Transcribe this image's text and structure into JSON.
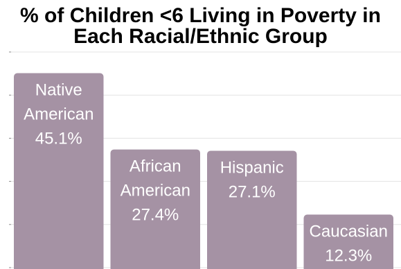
{
  "title_lines": [
    "% of Children <6 Living in Poverty in",
    "Each Racial/Ethnic Group"
  ],
  "colors": {
    "bar": "#a592a4",
    "grid": "#e3e3e3",
    "tick": "#888888",
    "label": "#ffffff"
  },
  "chart_data": {
    "type": "bar",
    "title": "% of Children <6 Living in Poverty in Each Racial/Ethnic Group",
    "categories": [
      "Native American",
      "African American",
      "Hispanic",
      "Caucasian"
    ],
    "values": [
      45.1,
      27.4,
      27.1,
      12.3
    ],
    "bar_labels": [
      [
        "Native",
        "American",
        "45.1%"
      ],
      [
        "African",
        "American",
        "27.4%"
      ],
      [
        "Hispanic",
        "27.1%"
      ],
      [
        "Caucasian",
        "12.3%"
      ]
    ],
    "xlabel": "",
    "ylabel": "",
    "ylim": [
      0,
      50
    ],
    "grid": true,
    "legend": "none"
  }
}
